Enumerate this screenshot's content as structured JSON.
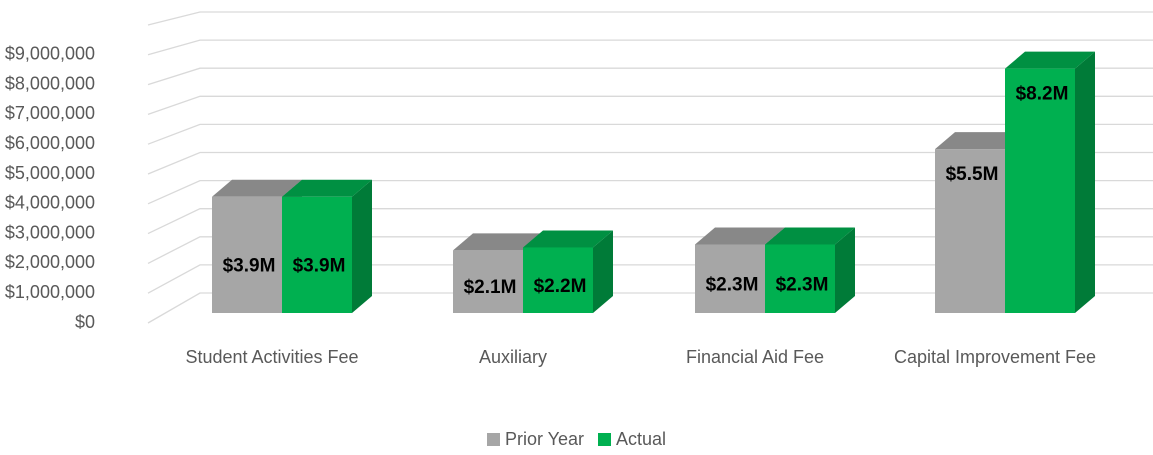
{
  "chart_data": {
    "type": "bar3d",
    "categories": [
      "Student Activities Fee",
      "Auxiliary",
      "Financial Aid Fee",
      "Capital Improvement Fee"
    ],
    "series": [
      {
        "name": "Prior Year",
        "color": "#a6a6a6",
        "values": [
          3900000,
          2100000,
          2300000,
          5500000
        ],
        "value_labels": [
          "$3.9M",
          "$2.1M",
          "$2.3M",
          "$5.5M"
        ]
      },
      {
        "name": "Actual",
        "color": "#00b050",
        "values": [
          3900000,
          2200000,
          2300000,
          8200000
        ],
        "value_labels": [
          "$3.9M",
          "$2.2M",
          "$2.3M",
          "$8.2M"
        ]
      }
    ],
    "ylim": [
      0,
      10000000
    ],
    "yticks": [
      {
        "value": 0,
        "label": "$0"
      },
      {
        "value": 1000000,
        "label": "$1,000,000"
      },
      {
        "value": 2000000,
        "label": "$2,000,000"
      },
      {
        "value": 3000000,
        "label": "$3,000,000"
      },
      {
        "value": 4000000,
        "label": "$4,000,000"
      },
      {
        "value": 5000000,
        "label": "$5,000,000"
      },
      {
        "value": 6000000,
        "label": "$6,000,000"
      },
      {
        "value": 7000000,
        "label": "$7,000,000"
      },
      {
        "value": 8000000,
        "label": "$8,000,000"
      },
      {
        "value": 9000000,
        "label": "$9,000,000"
      }
    ],
    "grid": true,
    "legend": "bottom"
  }
}
